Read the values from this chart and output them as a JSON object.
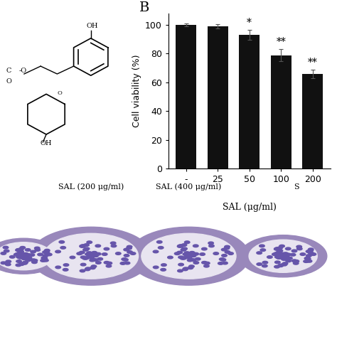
{
  "categories": [
    "-",
    "25",
    "50",
    "100",
    "200"
  ],
  "values": [
    100,
    99,
    93,
    79,
    66
  ],
  "errors": [
    1.0,
    1.5,
    3.5,
    4.0,
    3.0
  ],
  "bar_color": "#111111",
  "background_color": "#ffffff",
  "ylabel": "Cell viability (%)",
  "xlabel_text": "SAL (μg/ml)",
  "panel_label": "B",
  "ylim": [
    0,
    108
  ],
  "yticks": [
    0,
    20,
    40,
    60,
    80,
    100
  ],
  "significance": [
    "",
    "",
    "*",
    "**",
    "**"
  ],
  "bar_width": 0.65,
  "label_fontsize": 9,
  "tick_fontsize": 9,
  "panel_fontsize": 14,
  "star_fontsize": 10,
  "bottom_text_left": "SAL (200 μg/ml)",
  "bottom_text_mid": "SAL (400 μg/ml)",
  "bottom_text_right": "S",
  "bottom_bg_color": "#d8d0e8"
}
